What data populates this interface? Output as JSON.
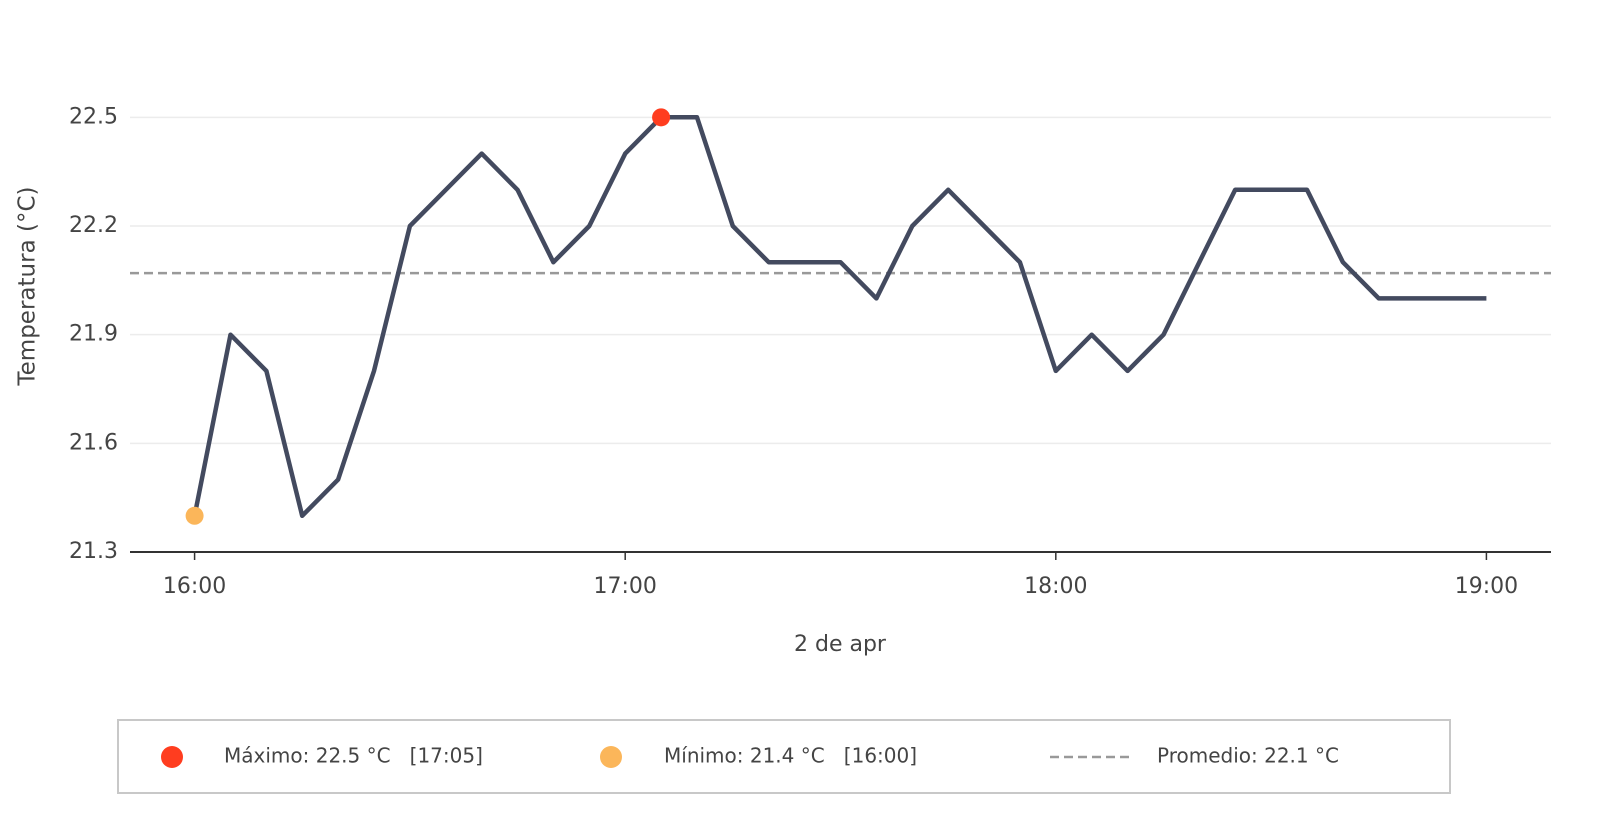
{
  "chart_data": {
    "type": "line",
    "y_label": "Temperatura (°C)",
    "x_label": "2 de apr",
    "x": [
      "16:00",
      "16:05",
      "16:10",
      "16:15",
      "16:20",
      "16:25",
      "16:30",
      "16:35",
      "16:40",
      "16:45",
      "16:50",
      "16:55",
      "17:00",
      "17:05",
      "17:10",
      "17:15",
      "17:20",
      "17:25",
      "17:30",
      "17:35",
      "17:40",
      "17:45",
      "17:50",
      "17:55",
      "18:00",
      "18:05",
      "18:10",
      "18:15",
      "18:20",
      "18:25",
      "18:30",
      "18:35",
      "18:40",
      "18:45",
      "18:50",
      "18:55",
      "19:00"
    ],
    "values": [
      21.4,
      21.9,
      21.8,
      21.4,
      21.5,
      21.8,
      22.2,
      22.3,
      22.4,
      22.3,
      22.1,
      22.2,
      22.4,
      22.5,
      22.5,
      22.2,
      22.1,
      22.1,
      22.1,
      22.0,
      22.2,
      22.3,
      22.2,
      22.1,
      21.8,
      21.9,
      21.8,
      21.9,
      22.1,
      22.3,
      22.3,
      22.3,
      22.1,
      22.0,
      22.0,
      22.0,
      22.0
    ],
    "color": "#434a5f",
    "xlim": [
      "15:51",
      "19:09"
    ],
    "xticks": [
      "16:00",
      "17:00",
      "18:00",
      "19:00"
    ],
    "ylim": [
      21.3,
      22.65
    ],
    "yticks": [
      21.3,
      21.6,
      21.9,
      22.2,
      22.5
    ],
    "grid": true,
    "markers": [
      {
        "x": "17:05",
        "value": 22.5,
        "color": "#ff3d1f",
        "label": "Máximo: 22.5 °C   [17:05]"
      },
      {
        "x": "16:00",
        "value": 21.4,
        "color": "#fbb65a",
        "label": "Mínimo: 21.4 °C   [16:00]"
      }
    ],
    "average": {
      "value": 22.07,
      "color": "#999999",
      "label": "Promedio: 22.1 °C"
    }
  }
}
